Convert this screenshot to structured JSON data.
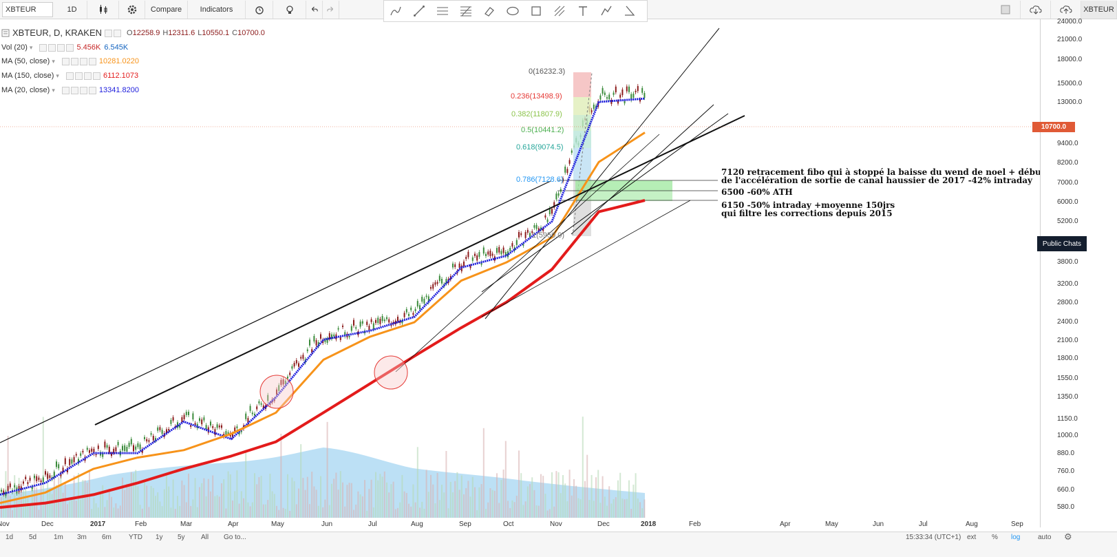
{
  "toolbar": {
    "symbol": "XBTEUR",
    "interval": "1D",
    "compare": "Compare",
    "indicators": "Indicators",
    "right_symbol": "XBTEUR"
  },
  "legend": {
    "title": "XBTEUR, D, KRAKEN",
    "open": "12258.9",
    "high": "12311.6",
    "low": "10550.1",
    "close": "10700.0",
    "vol_label": "Vol (20)",
    "vol_v1": "5.456K",
    "vol_v2": "6.545K",
    "ma50_label": "MA (50, close)",
    "ma50_value": "10281.0220",
    "ma150_label": "MA (150, close)",
    "ma150_value": "6112.1073",
    "ma20_label": "MA (20, close)",
    "ma20_value": "13341.8200"
  },
  "colors": {
    "ma50": "#f7931a",
    "ma150": "#e31b1b",
    "ma20": "#1c1cdc",
    "candle_up": "#3a8a3a",
    "candle_down": "#8b1a1a",
    "volume": "#8fcbef",
    "price_tag": "#e05a36"
  },
  "price_axis": [
    "24000.0",
    "21000.0",
    "18000.0",
    "15000.0",
    "13000.0",
    "10700.0",
    "9400.0",
    "8200.0",
    "7000.0",
    "6000.0",
    "5200.0",
    "3800.0",
    "3200.0",
    "2800.0",
    "2400.0",
    "2100.0",
    "1800.0",
    "1550.0",
    "1350.0",
    "1150.0",
    "1000.0",
    "880.0",
    "760.0",
    "660.0",
    "580.0"
  ],
  "current_price": "10700.0",
  "public_chats": "Public Chats",
  "time_axis": [
    {
      "label": "Nov",
      "bold": false
    },
    {
      "label": "Dec",
      "bold": false
    },
    {
      "label": "2017",
      "bold": true
    },
    {
      "label": "Feb",
      "bold": false
    },
    {
      "label": "Mar",
      "bold": false
    },
    {
      "label": "Apr",
      "bold": false
    },
    {
      "label": "May",
      "bold": false
    },
    {
      "label": "Jun",
      "bold": false
    },
    {
      "label": "Jul",
      "bold": false
    },
    {
      "label": "Aug",
      "bold": false
    },
    {
      "label": "Sep",
      "bold": false
    },
    {
      "label": "Oct",
      "bold": false
    },
    {
      "label": "Nov",
      "bold": false
    },
    {
      "label": "Dec",
      "bold": false
    },
    {
      "label": "2018",
      "bold": true
    },
    {
      "label": "Feb",
      "bold": false
    },
    {
      "label": "Apr",
      "bold": false
    },
    {
      "label": "May",
      "bold": false
    },
    {
      "label": "Jun",
      "bold": false
    },
    {
      "label": "Jul",
      "bold": false
    },
    {
      "label": "Aug",
      "bold": false
    },
    {
      "label": "Sep",
      "bold": false
    }
  ],
  "ranges": [
    "1d",
    "5d",
    "1m",
    "3m",
    "6m",
    "YTD",
    "1y",
    "5y",
    "All",
    "Go to..."
  ],
  "bottom_right": {
    "time": "15:33:34 (UTC+1)",
    "ext": "ext",
    "pct": "%",
    "log": "log",
    "auto": "auto"
  },
  "fib_levels": [
    {
      "label": "0(16232.3)",
      "color": "#555555"
    },
    {
      "label": "0.236(13498.9)",
      "color": "#e53935"
    },
    {
      "label": "0.382(11807.9)",
      "color": "#8bc34a"
    },
    {
      "label": "0.5(10441.2)",
      "color": "#4caf50"
    },
    {
      "label": "0.618(9074.5)",
      "color": "#26a69a"
    },
    {
      "label": "0.786(7128.6)",
      "color": "#2196f3"
    },
    {
      "label": "1(5950.0)",
      "color": "#777777"
    }
  ],
  "annotations": {
    "a1_line1": "7120 retracement fibo qui à stoppé la baisse du wend de noel + début",
    "a1_line2": "de l'accélération de sortie de canal haussier de 2017 -42% intraday",
    "a2": "6500 -60% ATH",
    "a3_line1": "6150 -50% intraday +moyenne 150jrs",
    "a3_line2": "qui filtre les corrections depuis 2015"
  },
  "chart_data": {
    "type": "line",
    "title": "XBTEUR, D, KRAKEN",
    "x": [
      "Nov 2016",
      "Dec 2016",
      "Jan 2017",
      "Feb 2017",
      "Mar 2017",
      "Apr 2017",
      "May 2017",
      "Jun 2017",
      "Jul 2017",
      "Aug 2017",
      "Sep 2017",
      "Oct 2017",
      "Nov 2017",
      "Dec 2017",
      "Dec 28 2017"
    ],
    "series": [
      {
        "name": "MA (20, close)",
        "values": [
          640,
          700,
          880,
          880,
          1120,
          980,
          1350,
          2100,
          2250,
          2500,
          3650,
          4000,
          5200,
          13000,
          13341.82
        ]
      },
      {
        "name": "MA (50, close)",
        "values": [
          600,
          650,
          780,
          850,
          900,
          1020,
          1200,
          1800,
          2150,
          2400,
          3300,
          3800,
          4600,
          8200,
          10281.02
        ]
      },
      {
        "name": "MA (150, close)",
        "values": [
          580,
          600,
          640,
          700,
          780,
          860,
          960,
          1200,
          1500,
          1850,
          2300,
          2800,
          3600,
          5600,
          6112.11
        ]
      }
    ],
    "ylim": [
      550,
      24000
    ],
    "log_scale": true,
    "last_close": 10700
  }
}
